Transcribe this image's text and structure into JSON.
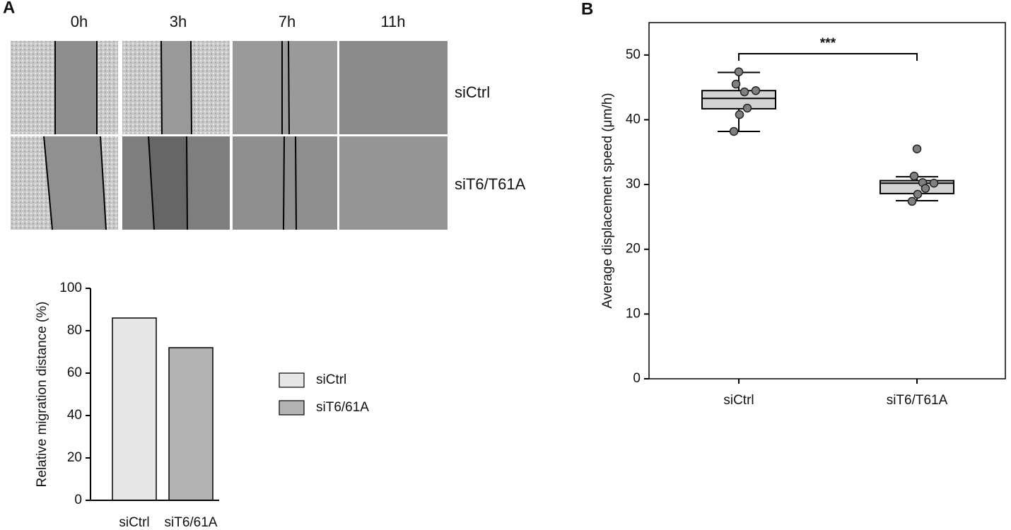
{
  "panels": [
    "A",
    "B"
  ],
  "timepoints": [
    "0h",
    "3h",
    "7h",
    "11h"
  ],
  "rows": [
    "siCtrl",
    "siT6/T61A"
  ],
  "chart_data": [
    {
      "type": "bar",
      "categories": [
        "siCtrl",
        "siT6/61A"
      ],
      "values": [
        86,
        72
      ],
      "colors": [
        "#e6e6e6",
        "#b3b3b3"
      ],
      "legend": [
        "siCtrl",
        "siT6/61A"
      ],
      "ylabel": "Relative migration distance (%)",
      "ylim": [
        0,
        100
      ],
      "yticks": [
        0,
        20,
        40,
        60,
        80,
        100
      ]
    },
    {
      "type": "box",
      "categories": [
        "siCtrl",
        "siT6/T61A"
      ],
      "boxes": [
        {
          "whislo": 38.2,
          "q1": 41.7,
          "med": 43.3,
          "q3": 44.5,
          "whishi": 47.3,
          "points": [
            47.4,
            45.5,
            44.3,
            44.5,
            41.8,
            40.8,
            38.2
          ]
        },
        {
          "whislo": 27.5,
          "q1": 28.6,
          "med": 30.2,
          "q3": 30.6,
          "whishi": 31.2,
          "points": [
            35.5,
            31.3,
            30.3,
            30.2,
            29.4,
            28.5,
            27.4
          ]
        }
      ],
      "box_color": "#d3d3d3",
      "point_color": "#808080",
      "annotation": "***",
      "ylabel": "Average displacement speed (μm/h)",
      "ylim": [
        0,
        55
      ],
      "yticks": [
        0,
        10,
        20,
        30,
        40,
        50
      ]
    }
  ]
}
